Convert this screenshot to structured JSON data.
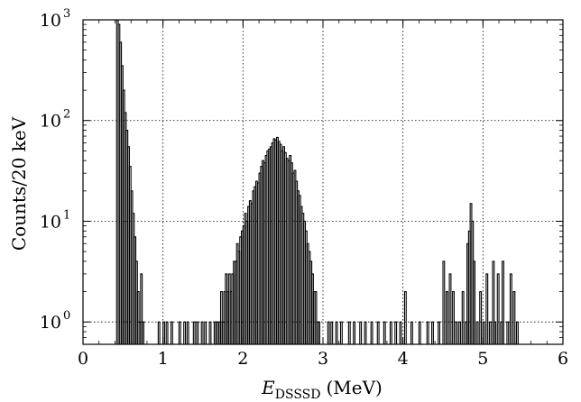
{
  "chart_data": {
    "type": "line",
    "step": true,
    "x_scale": "linear",
    "y_scale": "log",
    "xlim": [
      0,
      6
    ],
    "ylim": [
      0.6,
      1000
    ],
    "grid": true,
    "grid_style": "dotted",
    "colors": {
      "line": "#000000",
      "grid": "#000000",
      "frame": "#000000"
    },
    "xlabel": {
      "main": "E",
      "subscript": "DSSSD",
      "unit": "(MeV)"
    },
    "ylabel": "Counts/20 keV",
    "x_ticks": [
      {
        "value": 0,
        "label": "0"
      },
      {
        "value": 1,
        "label": "1"
      },
      {
        "value": 2,
        "label": "2"
      },
      {
        "value": 3,
        "label": "3"
      },
      {
        "value": 4,
        "label": "4"
      },
      {
        "value": 5,
        "label": "5"
      },
      {
        "value": 6,
        "label": "6"
      }
    ],
    "y_ticks": [
      {
        "value": 1,
        "base": "10",
        "exp": "0"
      },
      {
        "value": 10,
        "base": "10",
        "exp": "1"
      },
      {
        "value": 100,
        "base": "10",
        "exp": "2"
      },
      {
        "value": 1000,
        "base": "10",
        "exp": "3"
      }
    ],
    "histogram": {
      "bin_width": 0.02,
      "x": [
        0.42,
        0.44,
        0.46,
        0.48,
        0.5,
        0.52,
        0.54,
        0.56,
        0.58,
        0.6,
        0.62,
        0.64,
        0.66,
        0.68,
        0.7,
        0.72,
        0.74,
        0.94,
        1.0,
        1.04,
        1.1,
        1.2,
        1.26,
        1.3,
        1.38,
        1.42,
        1.48,
        1.52,
        1.58,
        1.64,
        1.66,
        1.68,
        1.7,
        1.72,
        1.74,
        1.76,
        1.78,
        1.8,
        1.82,
        1.84,
        1.86,
        1.88,
        1.9,
        1.92,
        1.94,
        1.96,
        1.98,
        2.0,
        2.02,
        2.04,
        2.06,
        2.08,
        2.1,
        2.12,
        2.14,
        2.16,
        2.18,
        2.2,
        2.22,
        2.24,
        2.26,
        2.28,
        2.3,
        2.32,
        2.34,
        2.36,
        2.38,
        2.4,
        2.42,
        2.44,
        2.46,
        2.48,
        2.5,
        2.52,
        2.54,
        2.56,
        2.58,
        2.6,
        2.62,
        2.64,
        2.66,
        2.68,
        2.7,
        2.72,
        2.74,
        2.76,
        2.78,
        2.8,
        2.82,
        2.84,
        2.86,
        2.88,
        2.9,
        2.92,
        2.94,
        3.06,
        3.1,
        3.16,
        3.22,
        3.32,
        3.38,
        3.46,
        3.52,
        3.6,
        3.68,
        3.76,
        3.84,
        3.9,
        3.96,
        4.02,
        4.1,
        4.2,
        4.3,
        4.36,
        4.44,
        4.5,
        4.54,
        4.58,
        4.62,
        4.66,
        4.7,
        4.74,
        4.78,
        4.8,
        4.82,
        4.84,
        4.86,
        4.88,
        4.92,
        4.96,
        5.0,
        5.04,
        5.08,
        5.12,
        5.14,
        5.18,
        5.22,
        5.24,
        5.3,
        5.34,
        5.38,
        5.42
      ],
      "counts": [
        1000,
        900,
        600,
        350,
        200,
        120,
        80,
        55,
        35,
        20,
        12,
        7,
        4,
        2,
        1,
        3,
        1,
        1,
        1,
        1,
        1,
        1,
        1,
        1,
        1,
        1,
        1,
        1,
        1,
        1,
        1,
        1,
        1,
        2,
        1,
        2,
        3,
        2,
        3,
        2,
        3,
        4,
        4,
        6,
        5,
        7,
        8,
        9,
        12,
        10,
        14,
        16,
        15,
        20,
        22,
        25,
        24,
        30,
        35,
        40,
        38,
        45,
        50,
        52,
        55,
        60,
        66,
        64,
        68,
        62,
        58,
        50,
        55,
        48,
        42,
        40,
        45,
        38,
        30,
        32,
        25,
        20,
        18,
        14,
        12,
        10,
        8,
        6,
        5,
        4,
        3,
        2,
        2,
        1,
        1,
        1,
        1,
        1,
        1,
        1,
        1,
        1,
        1,
        1,
        1,
        1,
        1,
        1,
        1,
        2,
        1,
        1,
        1,
        1,
        1,
        4,
        2,
        3,
        2,
        1,
        1,
        2,
        1,
        6,
        8,
        15,
        10,
        4,
        1,
        2,
        1,
        3,
        1,
        4,
        1,
        3,
        1,
        4,
        1,
        3,
        2,
        1
      ]
    }
  }
}
